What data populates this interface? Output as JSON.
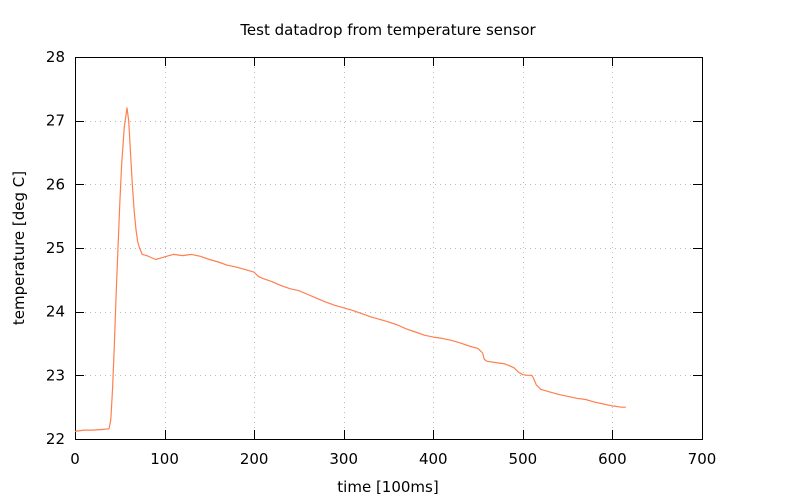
{
  "chart_data": {
    "type": "line",
    "title": "Test datadrop from temperature sensor",
    "xlabel": "time [100ms]",
    "ylabel": "temperature [deg C]",
    "xlim": [
      0,
      700
    ],
    "ylim": [
      22,
      28
    ],
    "xticks": [
      0,
      100,
      200,
      300,
      400,
      500,
      600,
      700
    ],
    "yticks": [
      22,
      23,
      24,
      25,
      26,
      27,
      28
    ],
    "grid": true,
    "legend": "none",
    "series": [
      {
        "color": "#ff7f50",
        "x": [
          0,
          10,
          20,
          30,
          38,
          40,
          42,
          44,
          46,
          48,
          50,
          52,
          55,
          58,
          60,
          62,
          64,
          66,
          68,
          70,
          72,
          75,
          80,
          85,
          90,
          95,
          100,
          105,
          110,
          120,
          130,
          140,
          150,
          160,
          170,
          180,
          190,
          200,
          205,
          210,
          220,
          230,
          240,
          250,
          260,
          270,
          280,
          290,
          300,
          310,
          320,
          330,
          340,
          350,
          360,
          370,
          380,
          390,
          400,
          410,
          420,
          430,
          440,
          450,
          455,
          457,
          460,
          470,
          480,
          490,
          495,
          500,
          505,
          510,
          512,
          515,
          520,
          530,
          540,
          550,
          560,
          570,
          580,
          590,
          600,
          610,
          615
        ],
        "y": [
          22.12,
          22.14,
          22.14,
          22.15,
          22.16,
          22.3,
          22.8,
          23.5,
          24.3,
          25.0,
          25.7,
          26.3,
          26.9,
          27.2,
          27.0,
          26.5,
          26.0,
          25.6,
          25.3,
          25.1,
          25.0,
          24.9,
          24.88,
          24.85,
          24.82,
          24.84,
          24.86,
          24.88,
          24.9,
          24.88,
          24.9,
          24.87,
          24.82,
          24.78,
          24.73,
          24.7,
          24.66,
          24.62,
          24.55,
          24.52,
          24.47,
          24.41,
          24.36,
          24.33,
          24.27,
          24.21,
          24.15,
          24.1,
          24.06,
          24.02,
          23.97,
          23.92,
          23.88,
          23.84,
          23.79,
          23.73,
          23.68,
          23.63,
          23.6,
          23.58,
          23.55,
          23.51,
          23.46,
          23.42,
          23.35,
          23.25,
          23.22,
          23.2,
          23.18,
          23.12,
          23.05,
          23.01,
          23.0,
          23.0,
          22.95,
          22.85,
          22.78,
          22.74,
          22.7,
          22.67,
          22.64,
          22.62,
          22.58,
          22.55,
          22.52,
          22.5,
          22.5
        ]
      }
    ]
  }
}
